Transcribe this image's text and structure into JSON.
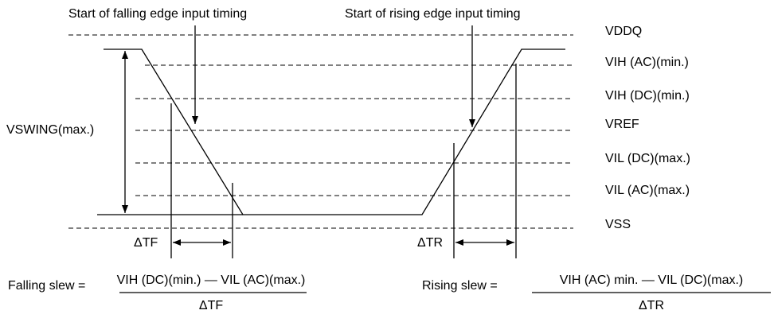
{
  "annotations": {
    "falling_start": "Start of falling edge input timing",
    "rising_start": "Start of rising edge input timing"
  },
  "levels": [
    "VDDQ",
    "VIH (AC)(min.)",
    "VIH (DC)(min.)",
    "VREF",
    "VIL (DC)(max.)",
    "VIL (AC)(max.)",
    "VSS"
  ],
  "swing_label": "VSWING(max.)",
  "delta_tf": "ΔTF",
  "delta_tr": "ΔTR",
  "formulas": {
    "falling": {
      "label": "Falling slew =",
      "numerator": "VIH (DC)(min.) — VIL (AC)(max.)",
      "denominator": "ΔTF"
    },
    "rising": {
      "label": "Rising slew =",
      "numerator": "VIH (AC) min. — VIL (DC)(max.)",
      "denominator": "ΔTR"
    }
  }
}
